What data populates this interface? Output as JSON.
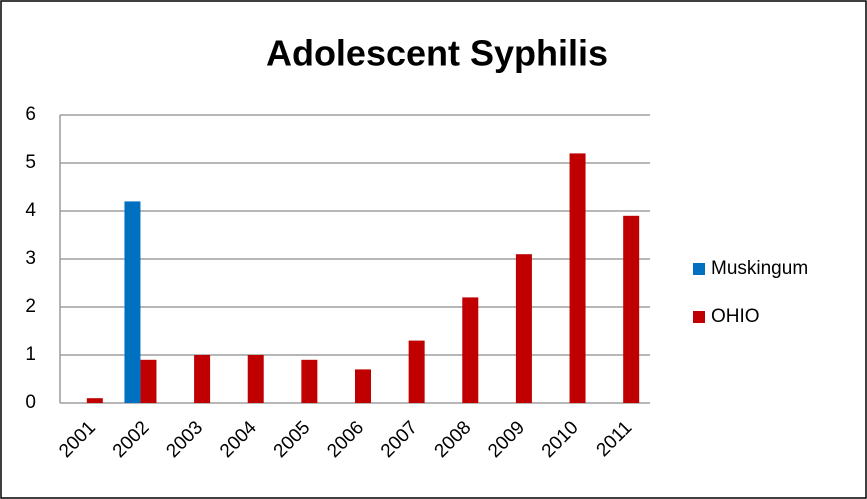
{
  "chart_data": {
    "type": "bar",
    "title": "Adolescent Syphilis",
    "categories": [
      "2001",
      "2002",
      "2003",
      "2004",
      "2005",
      "2006",
      "2007",
      "2008",
      "2009",
      "2010",
      "2011"
    ],
    "series": [
      {
        "name": "Muskingum",
        "color": "#0070c0",
        "values": [
          0,
          4.2,
          0,
          0,
          0,
          0,
          0,
          0,
          0,
          0,
          0
        ]
      },
      {
        "name": "OHIO",
        "color": "#c00000",
        "values": [
          0.1,
          0.9,
          1.0,
          1.0,
          0.9,
          0.7,
          1.3,
          2.2,
          3.1,
          5.2,
          3.9
        ]
      }
    ],
    "ylim": [
      0,
      6
    ],
    "yticks": [
      0,
      1,
      2,
      3,
      4,
      5,
      6
    ],
    "grid": true,
    "legend": "right"
  }
}
